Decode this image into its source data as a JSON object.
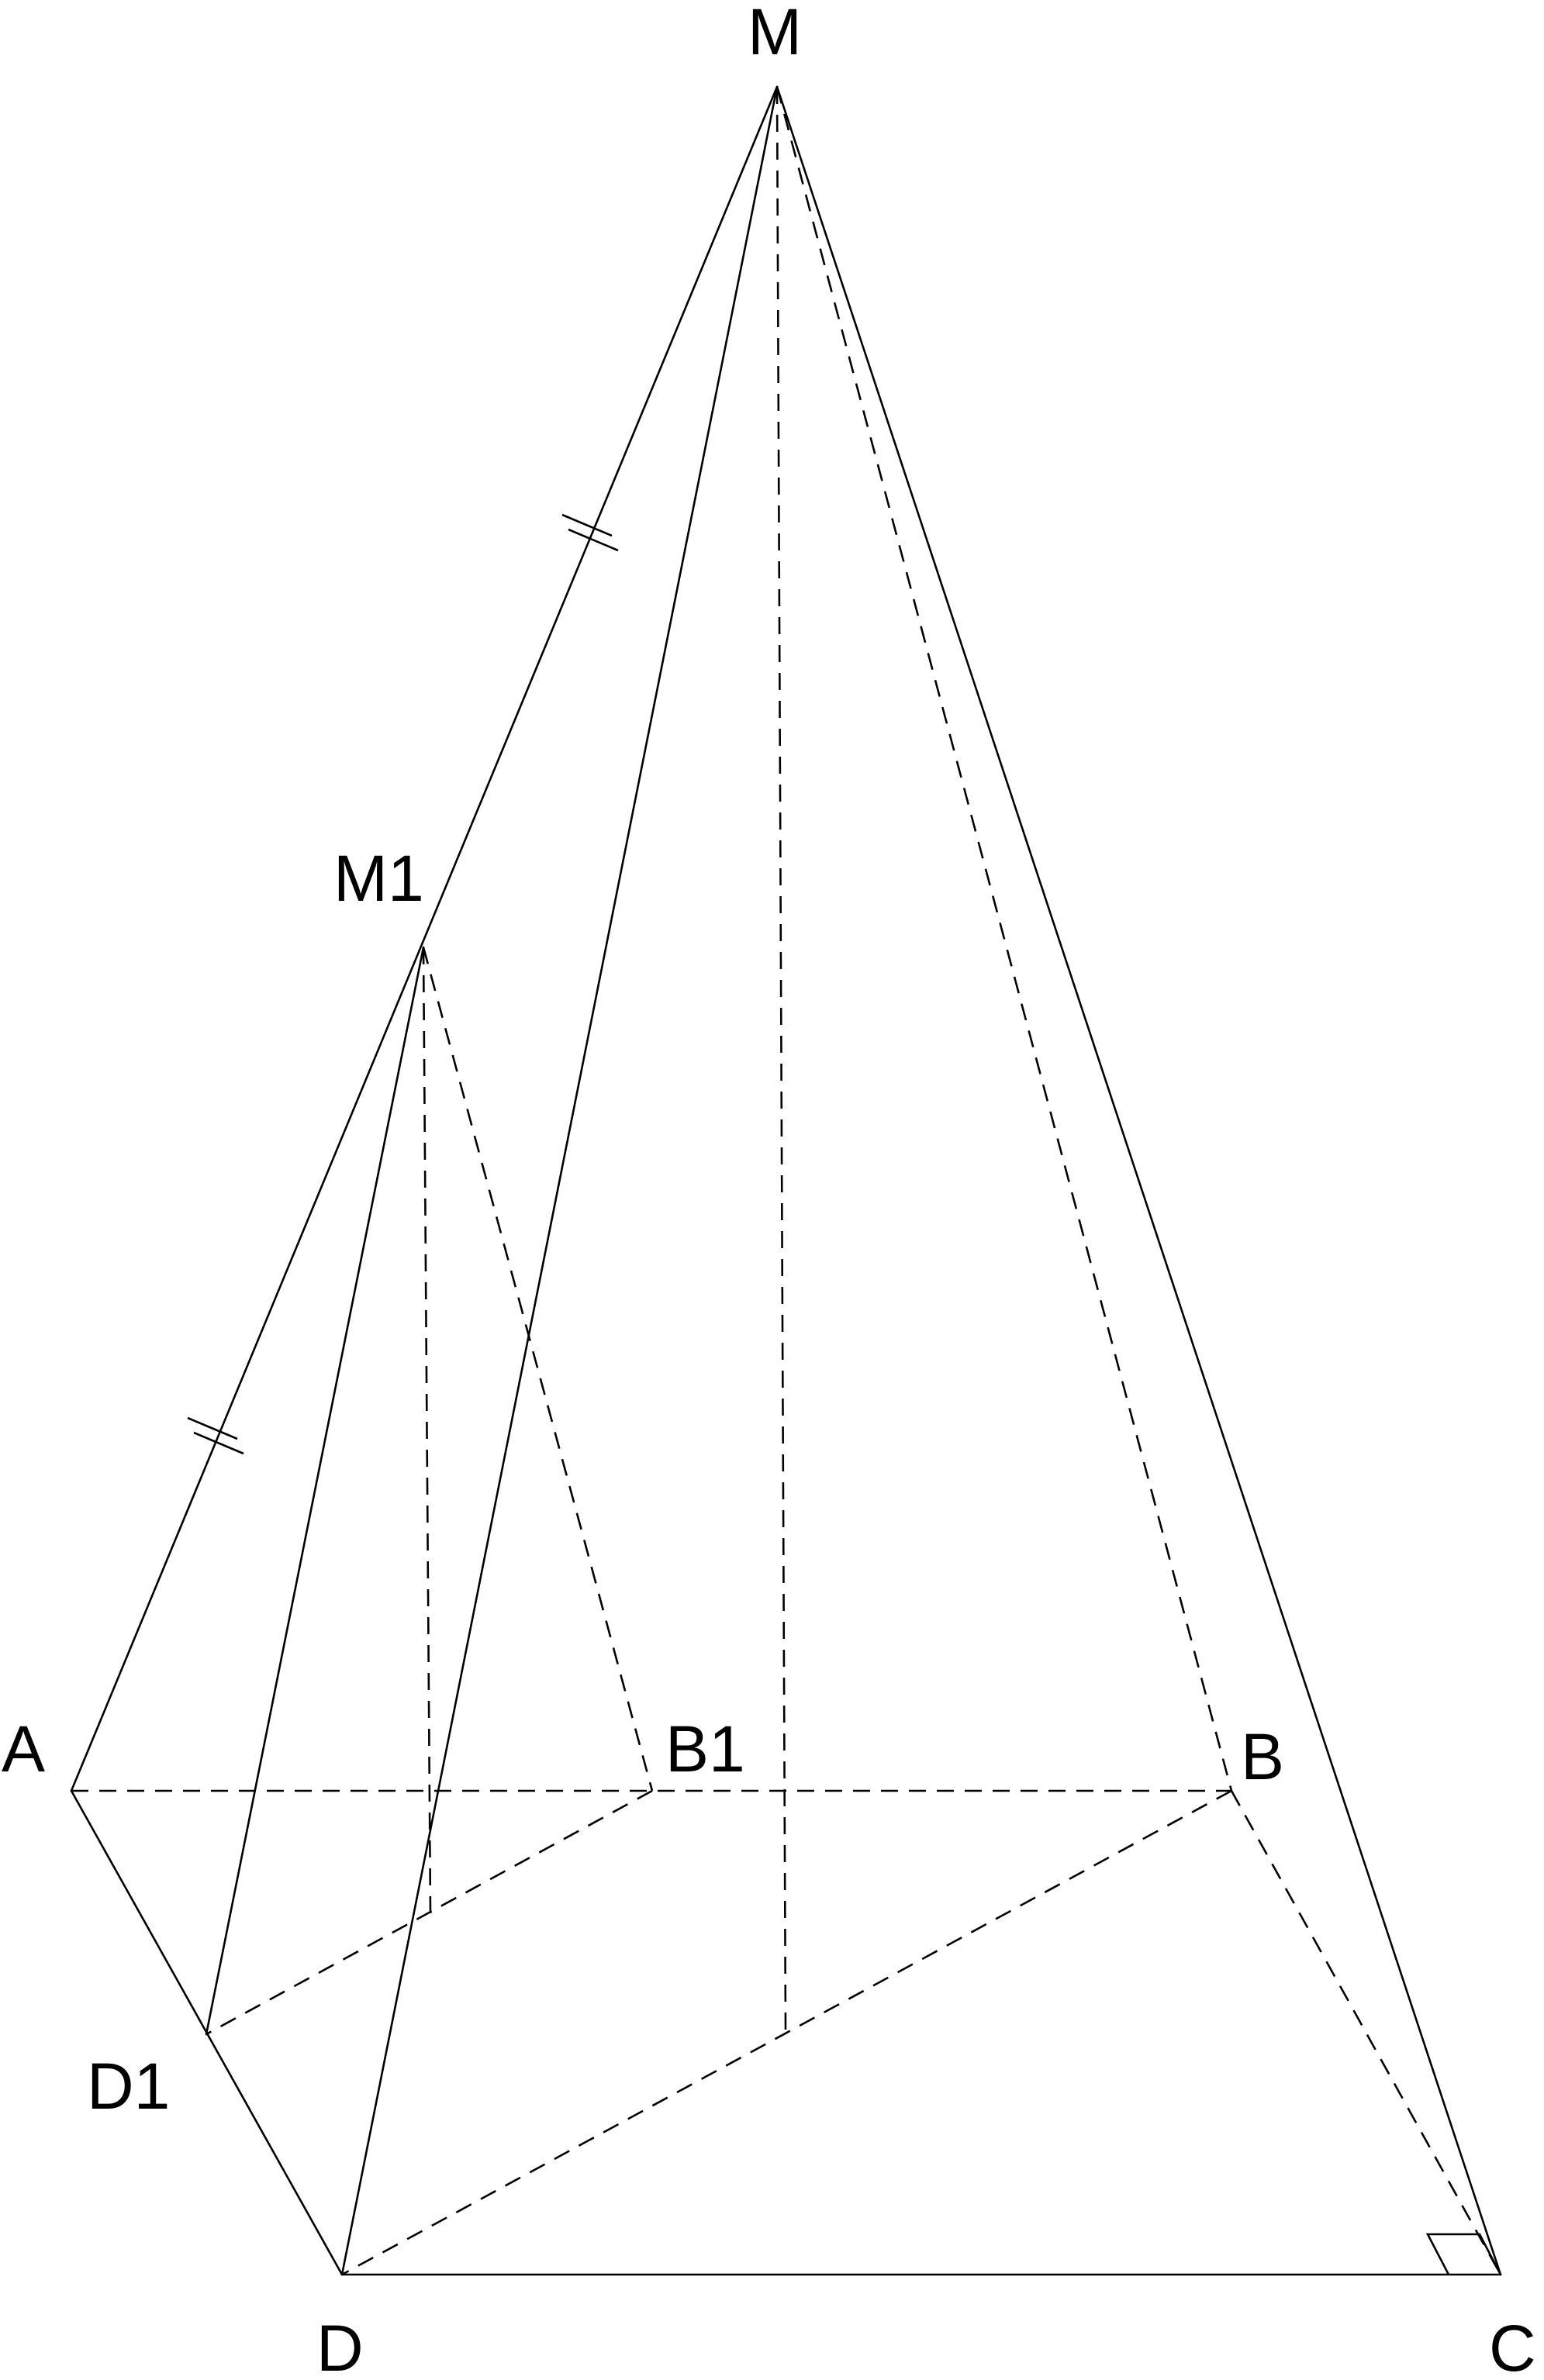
{
  "diagram": {
    "labels": {
      "M": "M",
      "M1": "M1",
      "A": "A",
      "B1": "B1",
      "B": "B",
      "D1": "D1",
      "D": "D",
      "C": "C"
    }
  }
}
